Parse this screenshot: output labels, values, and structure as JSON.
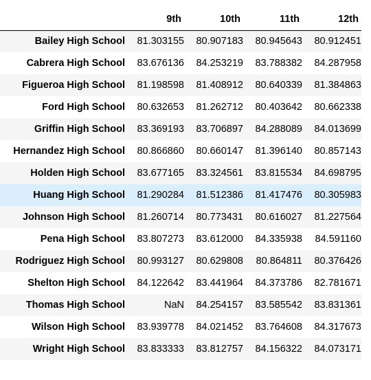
{
  "columns": [
    "9th",
    "10th",
    "11th",
    "12th"
  ],
  "rows": [
    {
      "school": "Bailey High School",
      "values": [
        "81.303155",
        "80.907183",
        "80.945643",
        "80.912451"
      ]
    },
    {
      "school": "Cabrera High School",
      "values": [
        "83.676136",
        "84.253219",
        "83.788382",
        "84.287958"
      ]
    },
    {
      "school": "Figueroa High School",
      "values": [
        "81.198598",
        "81.408912",
        "80.640339",
        "81.384863"
      ]
    },
    {
      "school": "Ford High School",
      "values": [
        "80.632653",
        "81.262712",
        "80.403642",
        "80.662338"
      ]
    },
    {
      "school": "Griffin High School",
      "values": [
        "83.369193",
        "83.706897",
        "84.288089",
        "84.013699"
      ]
    },
    {
      "school": "Hernandez High School",
      "values": [
        "80.866860",
        "80.660147",
        "81.396140",
        "80.857143"
      ]
    },
    {
      "school": "Holden High School",
      "values": [
        "83.677165",
        "83.324561",
        "83.815534",
        "84.698795"
      ]
    },
    {
      "school": "Huang High School",
      "values": [
        "81.290284",
        "81.512386",
        "81.417476",
        "80.305983"
      ]
    },
    {
      "school": "Johnson High School",
      "values": [
        "81.260714",
        "80.773431",
        "80.616027",
        "81.227564"
      ]
    },
    {
      "school": "Pena High School",
      "values": [
        "83.807273",
        "83.612000",
        "84.335938",
        "84.591160"
      ]
    },
    {
      "school": "Rodriguez High School",
      "values": [
        "80.993127",
        "80.629808",
        "80.864811",
        "80.376426"
      ]
    },
    {
      "school": "Shelton High School",
      "values": [
        "84.122642",
        "83.441964",
        "84.373786",
        "82.781671"
      ]
    },
    {
      "school": "Thomas High School",
      "values": [
        "NaN",
        "84.254157",
        "83.585542",
        "83.831361"
      ]
    },
    {
      "school": "Wilson High School",
      "values": [
        "83.939778",
        "84.021452",
        "83.764608",
        "84.317673"
      ]
    },
    {
      "school": "Wright High School",
      "values": [
        "83.833333",
        "83.812757",
        "84.156322",
        "84.073171"
      ]
    }
  ],
  "highlighted_row": "Huang High School",
  "colors": {
    "stripe": "#f5f5f5",
    "hover": "#dbeefc"
  }
}
